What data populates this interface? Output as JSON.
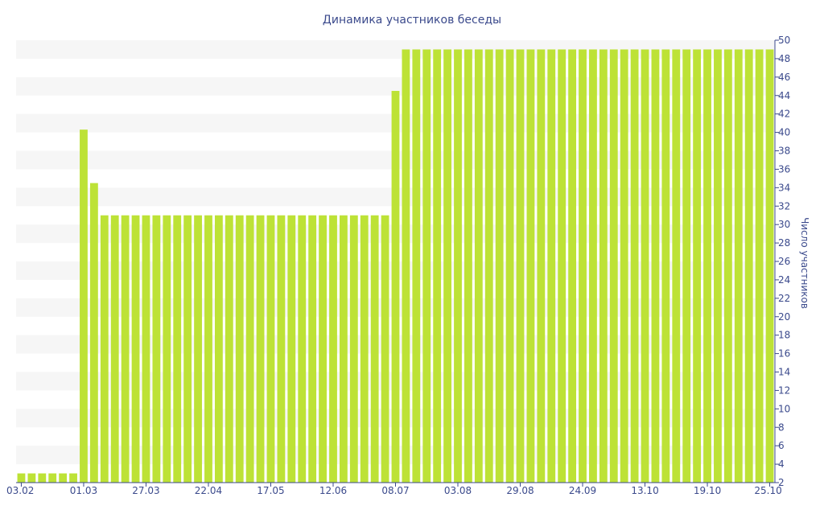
{
  "chart_data": {
    "type": "bar",
    "title": "Динамика участников беседы",
    "ylabel": "Число участников",
    "ylim": [
      2,
      50
    ],
    "yticks": [
      2,
      4,
      6,
      8,
      10,
      12,
      14,
      16,
      18,
      20,
      22,
      24,
      26,
      28,
      30,
      32,
      34,
      36,
      38,
      40,
      42,
      44,
      46,
      48,
      50
    ],
    "x_tick_labels": [
      {
        "label": "03.02",
        "index": 0
      },
      {
        "label": "01.03",
        "index": 6
      },
      {
        "label": "27.03",
        "index": 12
      },
      {
        "label": "22.04",
        "index": 18
      },
      {
        "label": "17.05",
        "index": 24
      },
      {
        "label": "12.06",
        "index": 30
      },
      {
        "label": "08.07",
        "index": 36
      },
      {
        "label": "03.08",
        "index": 42
      },
      {
        "label": "29.08",
        "index": 48
      },
      {
        "label": "24.09",
        "index": 54
      },
      {
        "label": "13.10",
        "index": 60
      },
      {
        "label": "19.10",
        "index": 66
      },
      {
        "label": "25.10",
        "index": 72
      }
    ],
    "series": [
      {
        "values": [
          3,
          3,
          3,
          3,
          3,
          3,
          40.3,
          34.5,
          31,
          31,
          31,
          31,
          31,
          31,
          31,
          31,
          31,
          31,
          31,
          31,
          31,
          31,
          31,
          31,
          31,
          31,
          31,
          31,
          31,
          31,
          31,
          31,
          31,
          31,
          31,
          31,
          44.5,
          49,
          49,
          49,
          49,
          49,
          49,
          49,
          49,
          49,
          49,
          49,
          49,
          49,
          49,
          49,
          49,
          49,
          49,
          49,
          49,
          49,
          49,
          49,
          49,
          49,
          49,
          49,
          49,
          49,
          49,
          49,
          49,
          49,
          49,
          49,
          49
        ]
      }
    ],
    "colors": {
      "bar": "#bde236",
      "band": "#f6f6f6",
      "axis": "#3b4a8c",
      "text": "#3b4a8c"
    },
    "grid": "alternating horizontal bands",
    "legend": "none"
  }
}
